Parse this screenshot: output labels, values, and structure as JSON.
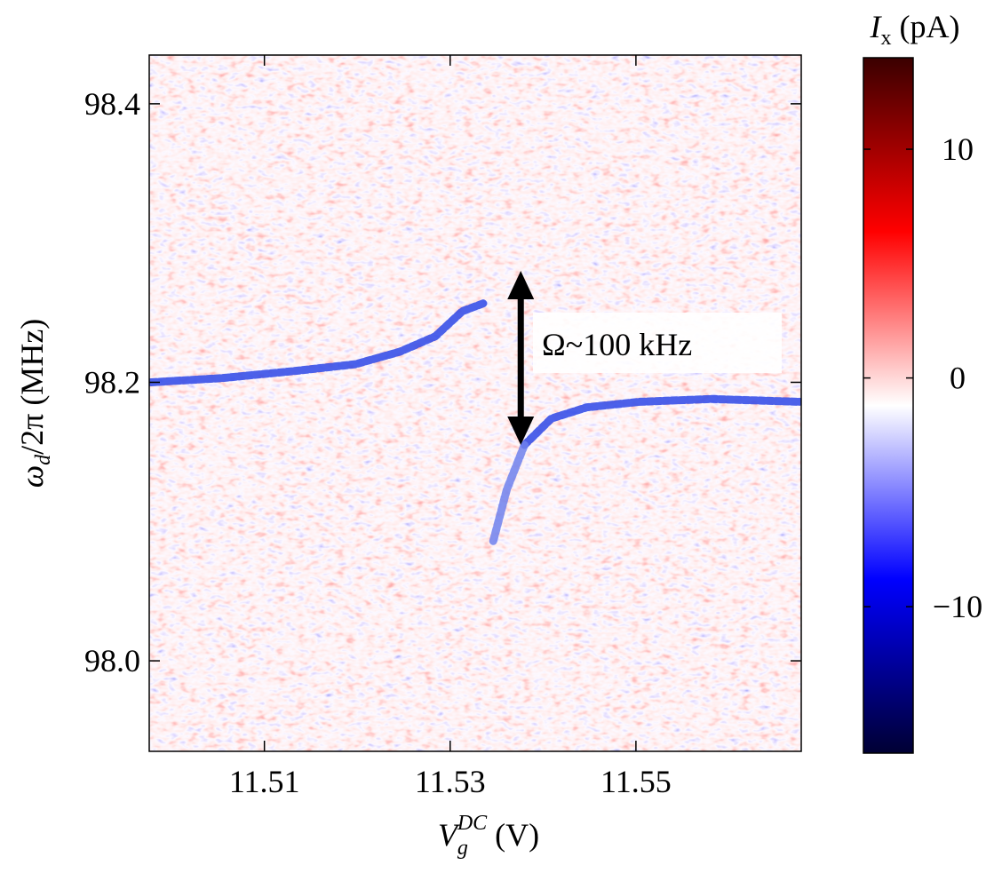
{
  "chart_data": {
    "type": "heatmap",
    "xlabel": {
      "symbol": "V",
      "sub": "g",
      "sup": "DC",
      "unit": " (V)"
    },
    "ylabel": {
      "symbol": "ω",
      "sub": "d",
      "unit": "/2π (MHz)"
    },
    "xlim": [
      11.4976,
      11.5678
    ],
    "ylim": [
      97.935,
      98.435
    ],
    "xticks": [
      11.51,
      11.53,
      11.55
    ],
    "yticks": [
      {
        "value": 98,
        "label": "98.0"
      },
      98.2,
      98.4
    ],
    "colorbar": {
      "label": {
        "symbol": "I",
        "sub": "x",
        "unit": " (pA)"
      },
      "clim": [
        -16.4,
        14
      ],
      "ticks": [
        {
          "value": -10,
          "label": "−10"
        },
        0,
        10
      ],
      "colormap": [
        "#000033",
        "#0000ff",
        "#ffffff",
        "#ff0000",
        "#3a0000"
      ]
    },
    "series": [
      {
        "color": "#2d46e6",
        "x": [
          11.4978,
          11.5054,
          11.5131,
          11.5198,
          11.5246,
          11.5284,
          11.5313,
          11.5337
        ],
        "values": [
          98.2,
          98.203,
          98.208,
          98.213,
          98.222,
          98.233,
          98.251,
          98.257
        ]
      },
      {
        "color": "#2d46e6",
        "x": [
          11.538,
          11.5409,
          11.5447,
          11.5504,
          11.5581,
          11.5676
        ],
        "values": [
          98.155,
          98.174,
          98.182,
          98.186,
          98.188,
          98.186
        ]
      },
      {
        "color": "#6f80ec",
        "x": [
          11.538,
          11.5361,
          11.5346
        ],
        "values": [
          98.155,
          98.123,
          98.085
        ]
      }
    ],
    "annotation": {
      "text": "Ω~100 kHz",
      "x": 11.5376,
      "y_top": 98.28,
      "y_bottom": 98.155
    }
  }
}
